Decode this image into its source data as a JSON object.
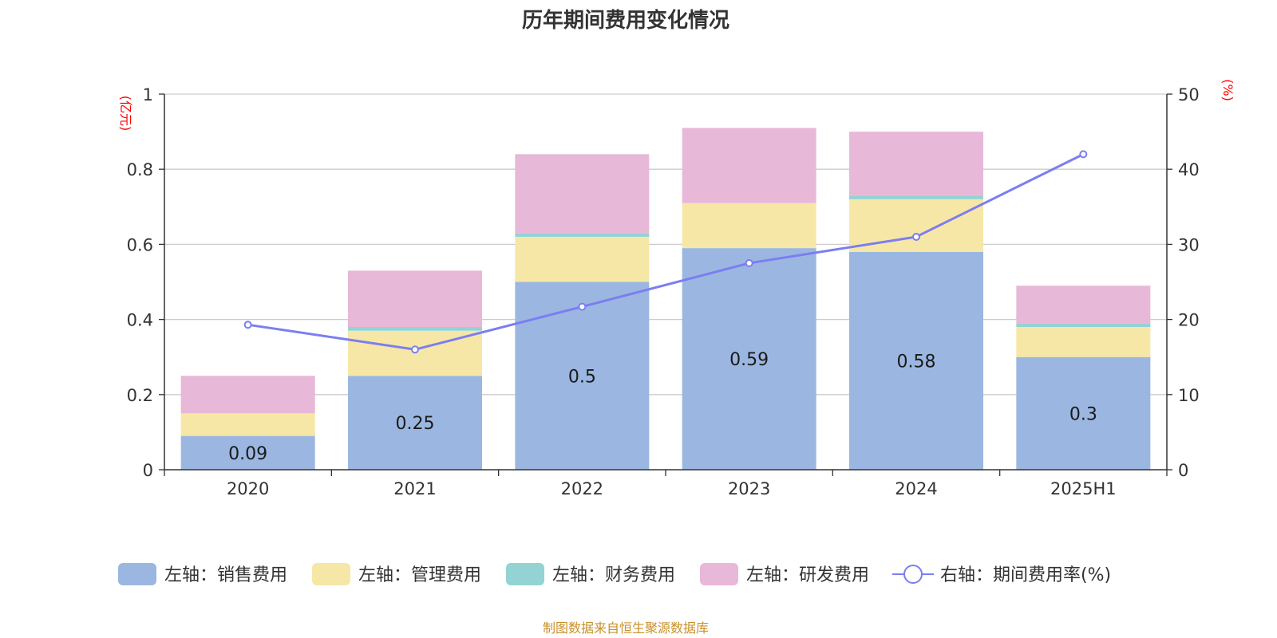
{
  "chart_data": {
    "type": "bar",
    "stacked": true,
    "title": "历年期间费用变化情况",
    "categories": [
      "2020",
      "2021",
      "2022",
      "2023",
      "2024",
      "2025H1"
    ],
    "y_left": {
      "unit": "(亿元)",
      "ylim": [
        0,
        1
      ],
      "ticks": [
        "0",
        "0.2",
        "0.4",
        "0.6",
        "0.8",
        "1"
      ],
      "tick_values": [
        0,
        0.2,
        0.4,
        0.6,
        0.8,
        1
      ]
    },
    "y_right": {
      "unit": "(%)",
      "ylim": [
        0,
        50
      ],
      "ticks": [
        "0",
        "10",
        "20",
        "30",
        "40",
        "50"
      ],
      "tick_values": [
        0,
        10,
        20,
        30,
        40,
        50
      ]
    },
    "series": [
      {
        "name": "左轴：销售费用",
        "axis": "left",
        "kind": "bar",
        "color": "#9bb7e1",
        "values": [
          0.09,
          0.25,
          0.5,
          0.59,
          0.58,
          0.3
        ],
        "labels": [
          "0.09",
          "0.25",
          "0.5",
          "0.59",
          "0.58",
          "0.3"
        ]
      },
      {
        "name": "左轴：管理费用",
        "axis": "left",
        "kind": "bar",
        "color": "#f7e7a6",
        "values": [
          0.06,
          0.12,
          0.12,
          0.12,
          0.14,
          0.08
        ]
      },
      {
        "name": "左轴：财务费用",
        "axis": "left",
        "kind": "bar",
        "color": "#94d3d3",
        "values": [
          0.0,
          0.01,
          0.01,
          0.0,
          0.01,
          0.01
        ]
      },
      {
        "name": "左轴：研发费用",
        "axis": "left",
        "kind": "bar",
        "color": "#e8b8d8",
        "values": [
          0.1,
          0.15,
          0.21,
          0.2,
          0.17,
          0.1
        ]
      },
      {
        "name": "右轴：期间费用率(%)",
        "axis": "right",
        "kind": "line",
        "color": "#7b7ef0",
        "values": [
          19.3,
          16.0,
          21.7,
          27.5,
          31.0,
          42.0
        ]
      }
    ],
    "grid": true,
    "legend_position": "bottom"
  },
  "source_note": "制图数据来自恒生聚源数据库"
}
